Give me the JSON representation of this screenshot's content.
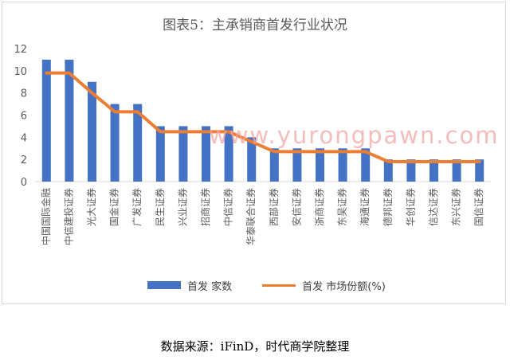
{
  "chart_data": {
    "type": "bar",
    "title": "图表5：主承销商首发行业状况",
    "categories": [
      "中国国际金融",
      "中信建投证券",
      "光大证券",
      "国金证券",
      "广发证券",
      "民生证券",
      "兴业证券",
      "招商证券",
      "中信证券",
      "华泰联合证券",
      "西部证券",
      "安信证券",
      "浙商证券",
      "东吴证券",
      "海通证券",
      "德邦证券",
      "华创证券",
      "信达证券",
      "东兴证券",
      "国信证券"
    ],
    "series": [
      {
        "name": "首发 家数",
        "type": "bar",
        "color": "#4472c4",
        "values": [
          11,
          11,
          9,
          7,
          7,
          5,
          5,
          5,
          5,
          4,
          3,
          3,
          3,
          3,
          3,
          2,
          2,
          2,
          2,
          2
        ]
      },
      {
        "name": "首发 市场份额(%)",
        "type": "line",
        "color": "#ed7d31",
        "values": [
          9.8,
          9.8,
          8.0,
          6.3,
          6.3,
          4.5,
          4.5,
          4.5,
          4.5,
          3.6,
          2.7,
          2.7,
          2.7,
          2.7,
          2.7,
          1.8,
          1.8,
          1.8,
          1.8,
          1.8
        ]
      }
    ],
    "ylim": [
      0,
      12
    ],
    "yticks": [
      0,
      2,
      4,
      6,
      8,
      10,
      12
    ],
    "grid": false,
    "legend": "bottom",
    "watermark": "www.yurongpawn.com"
  },
  "source_note": "数据来源：iFinD，时代商学院整理"
}
